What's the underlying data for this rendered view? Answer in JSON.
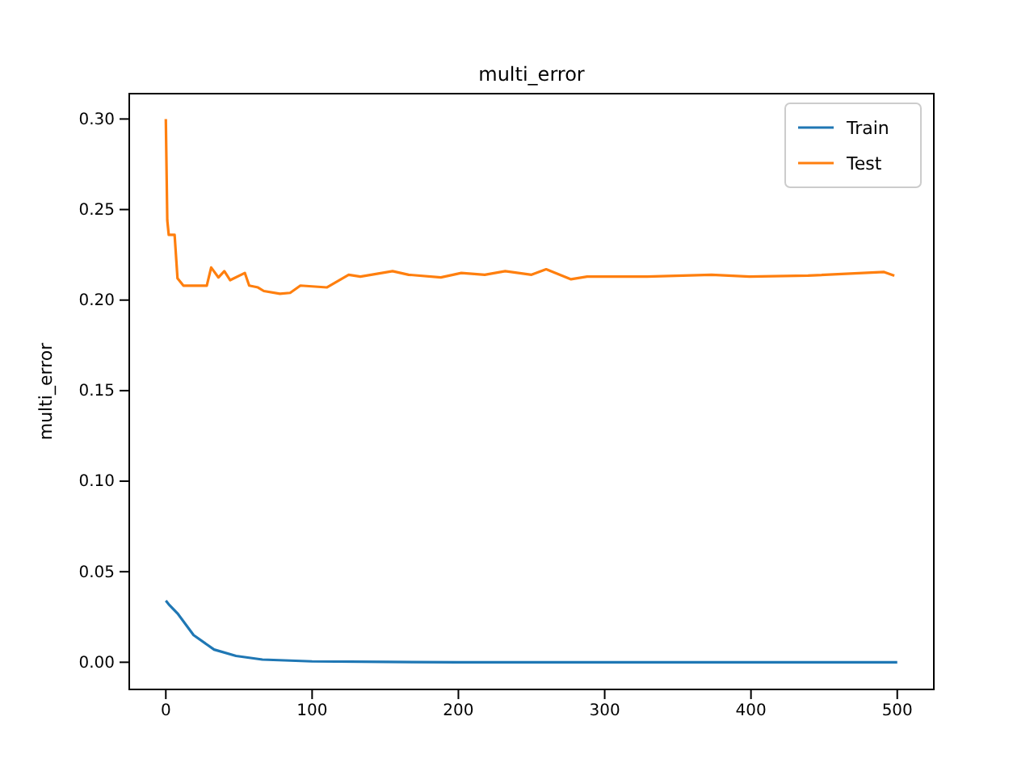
{
  "chart_data": {
    "type": "line",
    "title": "multi_error",
    "ylabel": "multi_error",
    "xlim": [
      -25,
      525
    ],
    "xticks": [
      0,
      100,
      200,
      300,
      400,
      500
    ],
    "ylim": [
      -0.015,
      0.314
    ],
    "yticks": [
      {
        "value": 0,
        "label": "0.00"
      },
      {
        "value": 0.05,
        "label": "0.05"
      },
      {
        "value": 0.1,
        "label": "0.10"
      },
      {
        "value": 0.15,
        "label": "0.15"
      },
      {
        "value": 0.2,
        "label": "0.20"
      },
      {
        "value": 0.25,
        "label": "0.25"
      },
      {
        "value": 0.3,
        "label": "0.30"
      }
    ],
    "grid": false,
    "legend": "top right",
    "marker": "none",
    "line_style": "solid",
    "series": [
      {
        "name": "Train",
        "color": "#1f77b4",
        "x": [
          0,
          2,
          8,
          19,
          33,
          48,
          66,
          100,
          150,
          200,
          300,
          400,
          500
        ],
        "values": [
          0.034,
          0.032,
          0.027,
          0.015,
          0.007,
          0.0035,
          0.0015,
          0.0005,
          0.0002,
          0,
          0,
          0,
          0
        ]
      },
      {
        "name": "Test",
        "color": "#ff7f0e",
        "x": [
          0,
          1,
          2,
          6,
          8,
          12,
          28,
          31,
          36,
          40,
          44,
          54,
          57,
          63,
          67,
          78,
          85,
          92,
          110,
          125,
          133,
          155,
          166,
          188,
          202,
          218,
          232,
          250,
          260,
          277,
          288,
          329,
          373,
          399,
          439,
          491,
          498
        ],
        "values": [
          0.3,
          0.244,
          0.236,
          0.236,
          0.212,
          0.208,
          0.208,
          0.218,
          0.2125,
          0.216,
          0.211,
          0.215,
          0.208,
          0.207,
          0.205,
          0.2035,
          0.204,
          0.208,
          0.207,
          0.214,
          0.213,
          0.216,
          0.214,
          0.2125,
          0.215,
          0.214,
          0.216,
          0.214,
          0.217,
          0.2115,
          0.213,
          0.213,
          0.214,
          0.213,
          0.2135,
          0.2155,
          0.2135
        ]
      }
    ]
  }
}
